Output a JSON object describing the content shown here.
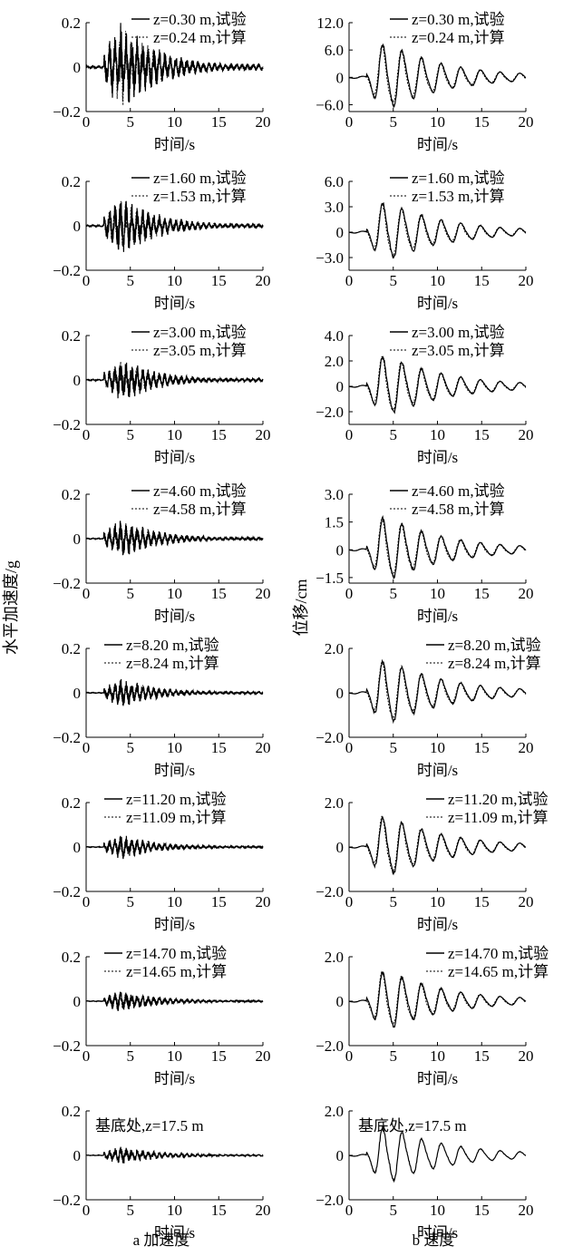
{
  "figure": {
    "left_ylabel": "水平加速度/g",
    "right_ylabel": "位移/cm",
    "caption_left": "a 加速度",
    "caption_right": "b 速度"
  },
  "chart_data": [
    {
      "type": "line",
      "panel": "a-1",
      "xlim": [
        0,
        20
      ],
      "ylim": [
        -0.2,
        0.2
      ],
      "xticks": [
        "0",
        "5",
        "10",
        "15",
        "20"
      ],
      "yticks": [
        "0.2",
        "0",
        "−0.2"
      ],
      "xlabel": "时间/s",
      "series": [
        {
          "name": "z=0.30 m,试验",
          "style": "solid",
          "amplitude": 0.19
        },
        {
          "name": "z=0.24 m,计算",
          "style": "dashed",
          "amplitude": 0.17
        }
      ]
    },
    {
      "type": "line",
      "panel": "b-1",
      "xlim": [
        0,
        20
      ],
      "ylim": [
        -7.5,
        12
      ],
      "xticks": [
        "0",
        "5",
        "10",
        "15",
        "20"
      ],
      "yticks": [
        "12.0",
        "6.0",
        "0",
        "−6.0"
      ],
      "xlabel": "时间/s",
      "series": [
        {
          "name": "z=0.30 m,试验",
          "style": "solid",
          "amplitude": 8
        },
        {
          "name": "z=0.24 m,计算",
          "style": "dashed",
          "amplitude": 7.5
        }
      ]
    },
    {
      "type": "line",
      "panel": "a-2",
      "xlim": [
        0,
        20
      ],
      "ylim": [
        -0.2,
        0.2
      ],
      "xticks": [
        "0",
        "5",
        "10",
        "15",
        "20"
      ],
      "yticks": [
        "0.2",
        "0",
        "−0.2"
      ],
      "xlabel": "时间/s",
      "series": [
        {
          "name": "z=1.60 m,试验",
          "style": "solid",
          "amplitude": 0.12
        },
        {
          "name": "z=1.53 m,计算",
          "style": "dashed",
          "amplitude": 0.11
        }
      ]
    },
    {
      "type": "line",
      "panel": "b-2",
      "xlim": [
        0,
        20
      ],
      "ylim": [
        -4.5,
        6
      ],
      "xticks": [
        "0",
        "5",
        "10",
        "15",
        "20"
      ],
      "yticks": [
        "6.0",
        "3.0",
        "0",
        "−3.0"
      ],
      "xlabel": "时间/s",
      "series": [
        {
          "name": "z=1.60 m,试验",
          "style": "solid",
          "amplitude": 3.8
        },
        {
          "name": "z=1.53 m,计算",
          "style": "dashed",
          "amplitude": 3.6
        }
      ]
    },
    {
      "type": "line",
      "panel": "a-3",
      "xlim": [
        0,
        20
      ],
      "ylim": [
        -0.2,
        0.2
      ],
      "xticks": [
        "0",
        "5",
        "10",
        "15",
        "20"
      ],
      "yticks": [
        "0.2",
        "0",
        "−0.2"
      ],
      "xlabel": "时间/s",
      "series": [
        {
          "name": "z=3.00 m,试验",
          "style": "solid",
          "amplitude": 0.09
        },
        {
          "name": "z=3.05 m,计算",
          "style": "dashed",
          "amplitude": 0.08
        }
      ]
    },
    {
      "type": "line",
      "panel": "b-3",
      "xlim": [
        0,
        20
      ],
      "ylim": [
        -3,
        4
      ],
      "xticks": [
        "0",
        "5",
        "10",
        "15",
        "20"
      ],
      "yticks": [
        "4.0",
        "2.0",
        "0",
        "−2.0"
      ],
      "xlabel": "时间/s",
      "series": [
        {
          "name": "z=3.00 m,试验",
          "style": "solid",
          "amplitude": 2.6
        },
        {
          "name": "z=3.05 m,计算",
          "style": "dashed",
          "amplitude": 2.5
        }
      ]
    },
    {
      "type": "line",
      "panel": "a-4",
      "xlim": [
        0,
        20
      ],
      "ylim": [
        -0.2,
        0.2
      ],
      "xticks": [
        "0",
        "5",
        "10",
        "15",
        "20"
      ],
      "yticks": [
        "0.2",
        "0",
        "−0.2"
      ],
      "xlabel": "时间/s",
      "series": [
        {
          "name": "z=4.60 m,试验",
          "style": "solid",
          "amplitude": 0.08
        },
        {
          "name": "z=4.58 m,计算",
          "style": "dashed",
          "amplitude": 0.07
        }
      ]
    },
    {
      "type": "line",
      "panel": "b-4",
      "xlim": [
        0,
        20
      ],
      "ylim": [
        -1.8,
        3
      ],
      "xticks": [
        "0",
        "5",
        "10",
        "15",
        "20"
      ],
      "yticks": [
        "3.0",
        "1.5",
        "0",
        "−1.5"
      ],
      "xlabel": "时间/s",
      "series": [
        {
          "name": "z=4.60 m,试验",
          "style": "solid",
          "amplitude": 1.9
        },
        {
          "name": "z=4.58 m,计算",
          "style": "dashed",
          "amplitude": 1.8
        }
      ]
    },
    {
      "type": "line",
      "panel": "a-5",
      "xlim": [
        0,
        20
      ],
      "ylim": [
        -0.2,
        0.2
      ],
      "xticks": [
        "0",
        "5",
        "10",
        "15",
        "20"
      ],
      "yticks": [
        "0.2",
        "0",
        "−0.2"
      ],
      "xlabel": "时间/s",
      "series": [
        {
          "name": "z=8.20 m,试验",
          "style": "solid",
          "amplitude": 0.06
        },
        {
          "name": "z=8.24 m,计算",
          "style": "dashed",
          "amplitude": 0.055
        }
      ]
    },
    {
      "type": "line",
      "panel": "b-5",
      "xlim": [
        0,
        20
      ],
      "ylim": [
        -2,
        2
      ],
      "xticks": [
        "0",
        "5",
        "10",
        "15",
        "20"
      ],
      "yticks": [
        "2.0",
        "0",
        "−2.0"
      ],
      "xlabel": "时间/s",
      "series": [
        {
          "name": "z=8.20 m,试验",
          "style": "solid",
          "amplitude": 1.6
        },
        {
          "name": "z=8.24 m,计算",
          "style": "dashed",
          "amplitude": 1.5
        }
      ]
    },
    {
      "type": "line",
      "panel": "a-6",
      "xlim": [
        0,
        20
      ],
      "ylim": [
        -0.2,
        0.2
      ],
      "xticks": [
        "0",
        "5",
        "10",
        "15",
        "20"
      ],
      "yticks": [
        "0.2",
        "0",
        "−0.2"
      ],
      "xlabel": "时间/s",
      "series": [
        {
          "name": "z=11.20 m,试验",
          "style": "solid",
          "amplitude": 0.05
        },
        {
          "name": "z=11.09 m,计算",
          "style": "dashed",
          "amplitude": 0.045
        }
      ]
    },
    {
      "type": "line",
      "panel": "b-6",
      "xlim": [
        0,
        20
      ],
      "ylim": [
        -2,
        2
      ],
      "xticks": [
        "0",
        "5",
        "10",
        "15",
        "20"
      ],
      "yticks": [
        "2.0",
        "0",
        "−2.0"
      ],
      "xlabel": "时间/s",
      "series": [
        {
          "name": "z=11.20 m,试验",
          "style": "solid",
          "amplitude": 1.5
        },
        {
          "name": "z=11.09 m,计算",
          "style": "dashed",
          "amplitude": 1.45
        }
      ]
    },
    {
      "type": "line",
      "panel": "a-7",
      "xlim": [
        0,
        20
      ],
      "ylim": [
        -0.2,
        0.2
      ],
      "xticks": [
        "0",
        "5",
        "10",
        "15",
        "20"
      ],
      "yticks": [
        "0.2",
        "0",
        "−0.2"
      ],
      "xlabel": "时间/s",
      "series": [
        {
          "name": "z=14.70 m,试验",
          "style": "solid",
          "amplitude": 0.045
        },
        {
          "name": "z=14.65 m,计算",
          "style": "dashed",
          "amplitude": 0.04
        }
      ]
    },
    {
      "type": "line",
      "panel": "b-7",
      "xlim": [
        0,
        20
      ],
      "ylim": [
        -2,
        2
      ],
      "xticks": [
        "0",
        "5",
        "10",
        "15",
        "20"
      ],
      "yticks": [
        "2.0",
        "0",
        "−2.0"
      ],
      "xlabel": "时间/s",
      "series": [
        {
          "name": "z=14.70 m,试验",
          "style": "solid",
          "amplitude": 1.45
        },
        {
          "name": "z=14.65 m,计算",
          "style": "dashed",
          "amplitude": 1.4
        }
      ]
    },
    {
      "type": "line",
      "panel": "a-8",
      "xlim": [
        0,
        20
      ],
      "ylim": [
        -0.2,
        0.2
      ],
      "xticks": [
        "0",
        "5",
        "10",
        "15",
        "20"
      ],
      "yticks": [
        "0.2",
        "0",
        "−0.2"
      ],
      "xlabel": "时间/s",
      "annotation": "基底处,z=17.5 m",
      "series": [
        {
          "style": "solid",
          "amplitude": 0.04
        }
      ]
    },
    {
      "type": "line",
      "panel": "b-8",
      "xlim": [
        0,
        20
      ],
      "ylim": [
        -2,
        2
      ],
      "xticks": [
        "0",
        "5",
        "10",
        "15",
        "20"
      ],
      "yticks": [
        "2.0",
        "0",
        "−2.0"
      ],
      "xlabel": "时间/s",
      "annotation": "基底处,z=17.5 m",
      "series": [
        {
          "style": "solid",
          "amplitude": 1.4
        }
      ]
    }
  ]
}
